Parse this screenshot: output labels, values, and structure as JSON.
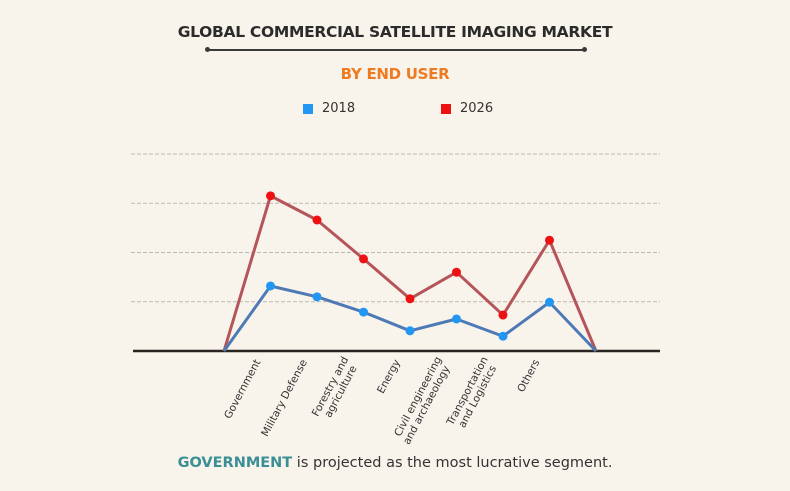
{
  "header": {
    "title": "GLOBAL COMMERCIAL SATELLITE IMAGING MARKET",
    "subtitle": "BY END USER"
  },
  "legend": [
    {
      "label": "2018",
      "color": "#2196f3"
    },
    {
      "label": "2026",
      "color": "#ee1111"
    }
  ],
  "caption": {
    "highlight": "GOVERNMENT",
    "text": " is projected as the most lucrative segment."
  },
  "colors": {
    "title": "#2b2b2b",
    "subtitle": "#ee7b22",
    "highlight": "#3a8f96",
    "line_2018": "#4d7ab5",
    "line_2026": "#b5555a",
    "marker_2018": "#2196f3",
    "marker_2026": "#ee1111",
    "grid": "#bdb8b0",
    "baseline": "#2a2420"
  },
  "chart_data": {
    "type": "line",
    "title": "GLOBAL COMMERCIAL SATELLITE IMAGING MARKET",
    "subtitle": "BY END USER",
    "xlabel": "",
    "ylabel": "",
    "categories": [
      [
        "Government"
      ],
      [
        "Military Defense"
      ],
      [
        "Forestry and",
        "agriculture"
      ],
      [
        "Energy"
      ],
      [
        "Civil engineering",
        "and archaeology"
      ],
      [
        "Transportation",
        "and Logistics"
      ],
      [
        "Others"
      ]
    ],
    "series": [
      {
        "name": "2018",
        "values": [
          1.32,
          1.1,
          0.79,
          0.41,
          0.65,
          0.3,
          0.99
        ]
      },
      {
        "name": "2026",
        "values": [
          3.15,
          2.66,
          1.87,
          1.06,
          1.6,
          0.73,
          2.25
        ]
      }
    ],
    "zero_anchors": true,
    "ylim": [
      0,
      4
    ],
    "y_unit": "relative (gridline units, axis unlabeled)",
    "grid": true,
    "y_tick_labels_shown": false,
    "legend_position": "top-center"
  }
}
